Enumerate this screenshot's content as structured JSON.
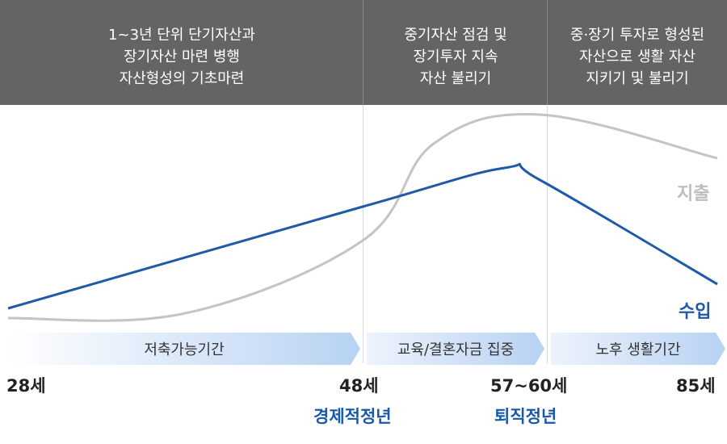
{
  "header": {
    "col1": [
      "1~3년 단위 단기자산과",
      "장기자산 마련 병행",
      "자산형성의 기초마련"
    ],
    "col2": [
      "중기자산 점검 및",
      "장기투자 지속",
      "자산 불리기"
    ],
    "col3": [
      "중·장기 투자로 형성된",
      "자산으로 생활 자산",
      "지키기 및 불리기"
    ]
  },
  "bands": {
    "saving": "저축가능기간",
    "education": "교육/결혼자금 집중",
    "retirement": "노후 생활기간"
  },
  "ages": {
    "a28": "28세",
    "a48": "48세",
    "a57": "57~60세",
    "a85": "85세"
  },
  "milestones": {
    "peak": "경제적정년",
    "retire": "퇴직정년"
  },
  "colors": {
    "income": "#1e5aa8",
    "spending": "#c4c4c4",
    "header_bg": "#646464",
    "band": "#bcd6f5"
  },
  "chart_data": {
    "type": "line",
    "x_axis_ticks": [
      "28세",
      "48세",
      "57~60세",
      "85세"
    ],
    "y_axis": "none",
    "series": [
      {
        "name": "수입",
        "shape": [
          [
            0,
            0.1
          ],
          [
            0.5,
            0.52
          ],
          [
            0.7,
            0.68
          ],
          [
            0.75,
            0.63
          ],
          [
            1,
            0.2
          ]
        ]
      },
      {
        "name": "지출",
        "shape": [
          [
            0,
            0.06
          ],
          [
            0.25,
            0.08
          ],
          [
            0.5,
            0.38
          ],
          [
            0.6,
            0.78
          ],
          [
            0.75,
            0.9
          ],
          [
            1,
            0.72
          ]
        ]
      }
    ]
  }
}
